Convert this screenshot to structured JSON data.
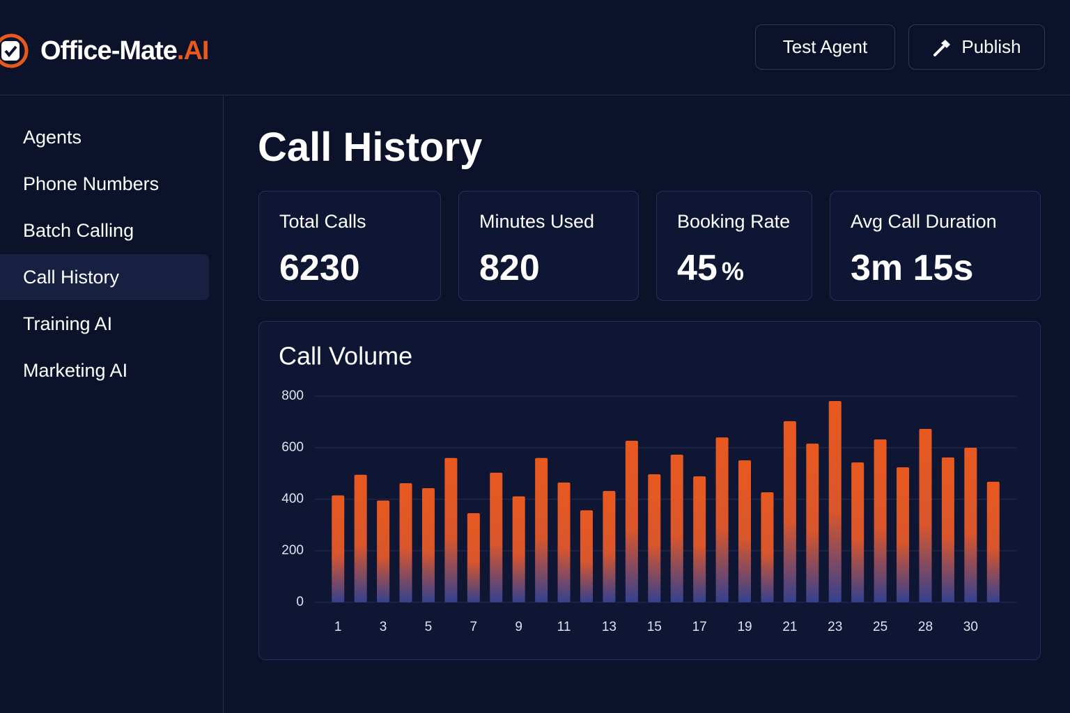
{
  "header": {
    "logo": {
      "name": "Office-Mate",
      "suffix": ".AI"
    },
    "buttons": [
      "Test Agent",
      "Publish"
    ]
  },
  "sidebar": {
    "items": [
      "Agents",
      "Phone Numbers",
      "Batch Calling",
      "Call History",
      "Training AI",
      "Marketing AI"
    ],
    "active": 3
  },
  "page_title": "Call History",
  "stats": [
    {
      "label": "Total Calls",
      "value": "6230"
    },
    {
      "label": "Minutes Used",
      "value": "820"
    },
    {
      "label": "Booking Rate",
      "value": "45",
      "unit": "%"
    },
    {
      "label": "Avg Call Duration",
      "value": "3m 15s"
    }
  ],
  "chart_data": {
    "type": "bar",
    "title": "Call Volume",
    "categories": [
      "1",
      null,
      "3",
      null,
      "5",
      null,
      "7",
      null,
      "9",
      null,
      "11",
      null,
      "13",
      null,
      "15",
      null,
      "17",
      null,
      "19",
      null,
      "21",
      null,
      "23",
      null,
      "25",
      null,
      "28",
      null,
      "30",
      null
    ],
    "values": [
      415,
      495,
      395,
      462,
      443,
      560,
      346,
      503,
      411,
      560,
      465,
      357,
      432,
      627,
      497,
      573,
      489,
      640,
      551,
      427,
      703,
      616,
      781,
      543,
      632,
      524,
      673,
      562,
      600,
      468
    ],
    "color": "#e8591f",
    "ylim": [
      0,
      800
    ],
    "yticks": [
      0,
      200,
      400,
      600,
      800
    ],
    "grid": true
  }
}
